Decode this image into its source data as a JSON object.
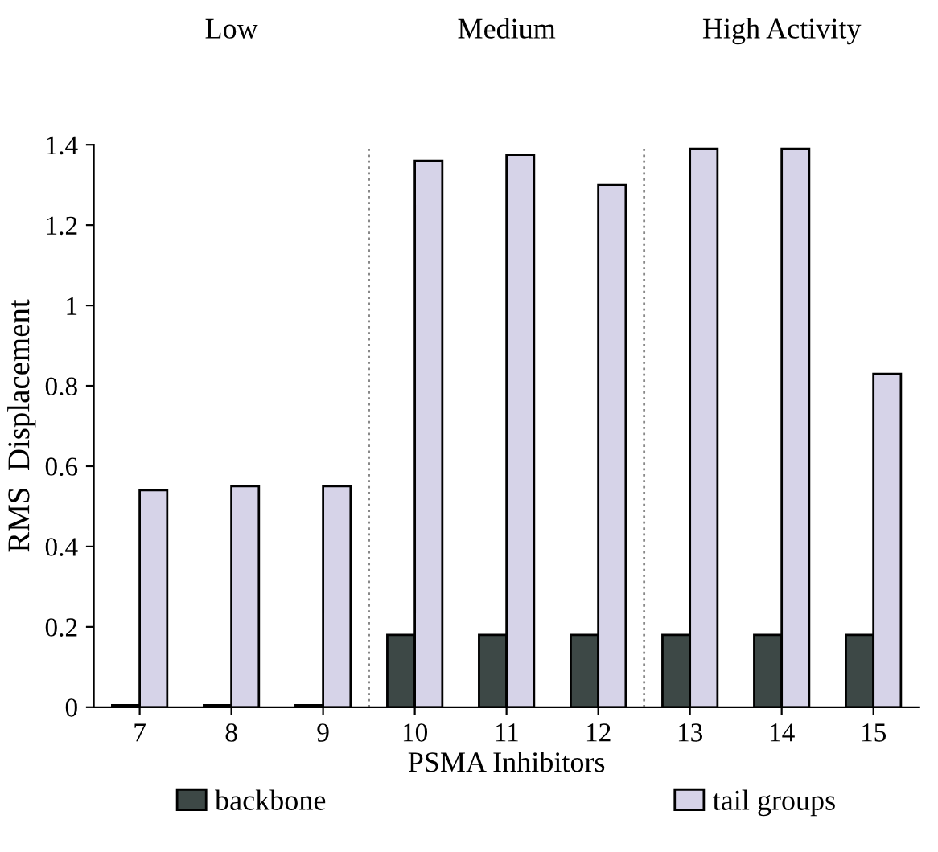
{
  "chart_data": {
    "type": "bar",
    "xlabel": "PSMA Inhibitors",
    "ylabel": "RMS  Displacement",
    "x": [
      7,
      8,
      9,
      10,
      11,
      12,
      13,
      14,
      15
    ],
    "xlim": [
      6.5,
      15.5
    ],
    "xticks": [
      7,
      8,
      9,
      10,
      11,
      12,
      13,
      14,
      15
    ],
    "ylim": [
      0,
      1.4
    ],
    "yticks": [
      0,
      0.2,
      0.4,
      0.6,
      0.8,
      1,
      1.2,
      1.4
    ],
    "series": [
      {
        "name": "backbone",
        "color": "#3d4846",
        "values": [
          0.005,
          0.005,
          0.005,
          0.18,
          0.18,
          0.18,
          0.18,
          0.18,
          0.18
        ]
      },
      {
        "name": "tail groups",
        "color": "#d6d3e8",
        "values": [
          0.54,
          0.55,
          0.55,
          1.36,
          1.375,
          1.3,
          1.39,
          1.39,
          0.83
        ]
      }
    ],
    "ref_lines": [
      {
        "axis": "x",
        "value": 9.5,
        "line_style": "dotted",
        "color": "#888888"
      },
      {
        "axis": "x",
        "value": 12.5,
        "line_style": "dotted",
        "color": "#888888"
      }
    ],
    "annotations": [
      "Low",
      "Medium",
      "High Activity"
    ],
    "legend": "bottom",
    "grid": false
  }
}
